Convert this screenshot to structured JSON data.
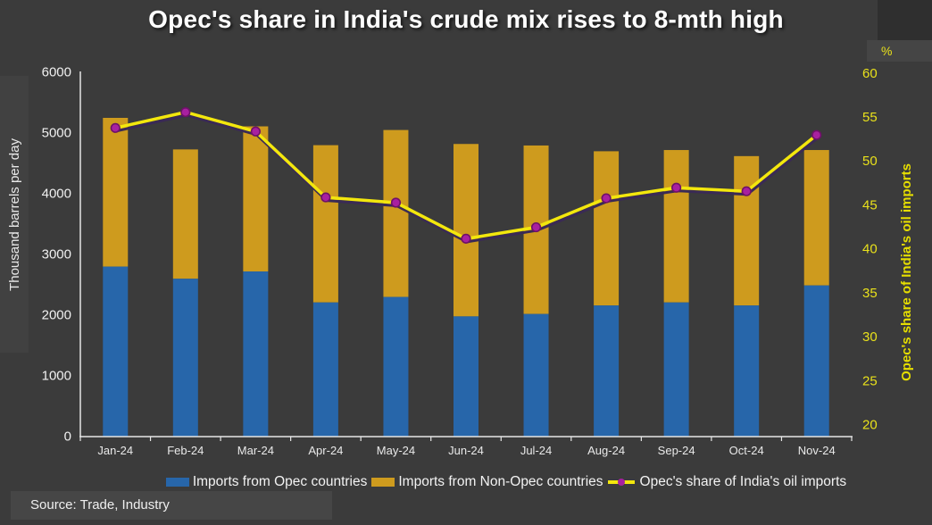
{
  "title": "Opec's share in India's crude mix rises to 8-mth high",
  "source": "Source: Trade, Industry",
  "colors": {
    "background": "#3B3B3B",
    "axis_line": "#E6E6E6",
    "axis_text": "#F0F0F0",
    "right_axis_text": "#E9E11B",
    "bar_opec": "#2766AA",
    "bar_non_opec": "#CE9B1E",
    "line": "#F3E70D",
    "line_shadow": "#3A2A55",
    "marker": "#A820A0",
    "marker_rim": "#6E1168"
  },
  "chart_data": {
    "type": "bar",
    "subtype": "stacked-bars-with-line",
    "title": "Opec's share in India's crude mix rises to 8-mth high",
    "categories": [
      "Jan-24",
      "Feb-24",
      "Mar-24",
      "Apr-24",
      "May-24",
      "Jun-24",
      "Jul-24",
      "Aug-24",
      "Sep-24",
      "Oct-24",
      "Nov-24"
    ],
    "series": [
      {
        "name": "Imports from Opec countries",
        "type": "bar",
        "axis": "left",
        "color": "#2766AA",
        "values": [
          2800,
          2600,
          2720,
          2210,
          2300,
          1980,
          2020,
          2160,
          2210,
          2160,
          2490
        ]
      },
      {
        "name": "Imports from Non-Opec countries",
        "type": "bar",
        "axis": "left",
        "color": "#CE9B1E",
        "values": [
          2450,
          2130,
          2390,
          2590,
          2750,
          2840,
          2775,
          2540,
          2510,
          2460,
          2230
        ]
      },
      {
        "name": "Opec's share of India's oil imports",
        "type": "line",
        "axis": "right",
        "color": "#F3E70D",
        "marker_color": "#A820A0",
        "values": [
          53.8,
          55.6,
          53.4,
          45.9,
          45.3,
          41.2,
          42.5,
          45.8,
          47.0,
          46.6,
          53.0
        ]
      }
    ],
    "left_axis": {
      "label": "Thousand barrels per day",
      "min": 0,
      "max": 6000,
      "step": 1000
    },
    "right_axis": {
      "label": "Opec's share of India's oil imports",
      "unit": "%",
      "min": 20,
      "max": 60,
      "step": 5
    },
    "legend_position": "bottom",
    "grid": false
  }
}
